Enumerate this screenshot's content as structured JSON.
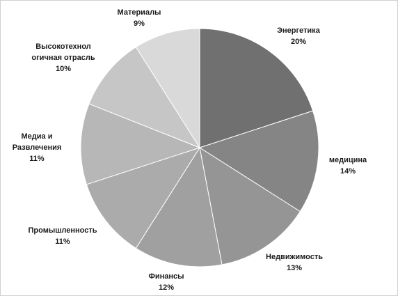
{
  "chart_data": {
    "type": "pie",
    "title": "",
    "legend": "none",
    "start_angle_deg": 0,
    "direction": "clockwise",
    "slices": [
      {
        "label": "Энергетика",
        "value": 20,
        "value_label": "20%",
        "color": "#707070"
      },
      {
        "label": "медицина",
        "value": 14,
        "value_label": "14%",
        "color": "#858585"
      },
      {
        "label": "Недвижимость",
        "value": 13,
        "value_label": "13%",
        "color": "#959595"
      },
      {
        "label": "Финансы",
        "value": 12,
        "value_label": "12%",
        "color": "#a0a0a0"
      },
      {
        "label": "Промышленность",
        "value": 11,
        "value_label": "11%",
        "color": "#ababab"
      },
      {
        "label": "Медиа и Развлечения",
        "value": 11,
        "value_label": "11%",
        "color": "#b7b7b7"
      },
      {
        "label": "Высокотехнологичная отрасль",
        "value": 10,
        "value_label": "10%",
        "color": "#c6c6c6"
      },
      {
        "label": "Материалы",
        "value": 9,
        "value_label": "9%",
        "color": "#d9d9d9"
      }
    ]
  }
}
